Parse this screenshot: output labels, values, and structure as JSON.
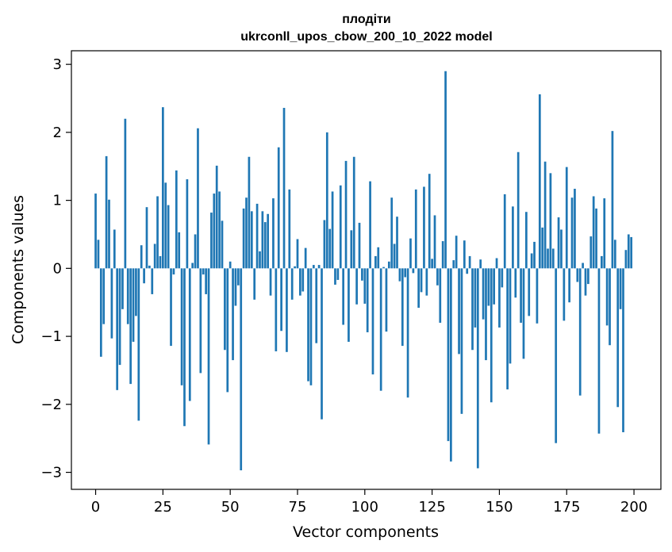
{
  "chart_data": {
    "type": "bar",
    "title": "плодіти",
    "subtitle": "ukrconll_upos_cbow_200_10_2022 model",
    "xlabel": "Vector components",
    "ylabel": "Components values",
    "xlim": [
      -9,
      210
    ],
    "ylim": [
      -3.25,
      3.2
    ],
    "xticks": [
      0,
      25,
      50,
      75,
      100,
      125,
      150,
      175,
      200
    ],
    "yticks": [
      -3,
      -2,
      -1,
      0,
      1,
      2,
      3
    ],
    "grid": false,
    "bar_color": "#1f77b4",
    "x": [
      0,
      1,
      2,
      3,
      4,
      5,
      6,
      7,
      8,
      9,
      10,
      11,
      12,
      13,
      14,
      15,
      16,
      17,
      18,
      19,
      20,
      21,
      22,
      23,
      24,
      25,
      26,
      27,
      28,
      29,
      30,
      31,
      32,
      33,
      34,
      35,
      36,
      37,
      38,
      39,
      40,
      41,
      42,
      43,
      44,
      45,
      46,
      47,
      48,
      49,
      50,
      51,
      52,
      53,
      54,
      55,
      56,
      57,
      58,
      59,
      60,
      61,
      62,
      63,
      64,
      65,
      66,
      67,
      68,
      69,
      70,
      71,
      72,
      73,
      74,
      75,
      76,
      77,
      78,
      79,
      80,
      81,
      82,
      83,
      84,
      85,
      86,
      87,
      88,
      89,
      90,
      91,
      92,
      93,
      94,
      95,
      96,
      97,
      98,
      99,
      100,
      101,
      102,
      103,
      104,
      105,
      106,
      107,
      108,
      109,
      110,
      111,
      112,
      113,
      114,
      115,
      116,
      117,
      118,
      119,
      120,
      121,
      122,
      123,
      124,
      125,
      126,
      127,
      128,
      129,
      130,
      131,
      132,
      133,
      134,
      135,
      136,
      137,
      138,
      139,
      140,
      141,
      142,
      143,
      144,
      145,
      146,
      147,
      148,
      149,
      150,
      151,
      152,
      153,
      154,
      155,
      156,
      157,
      158,
      159,
      160,
      161,
      162,
      163,
      164,
      165,
      166,
      167,
      168,
      169,
      170,
      171,
      172,
      173,
      174,
      175,
      176,
      177,
      178,
      179,
      180,
      181,
      182,
      183,
      184,
      185,
      186,
      187,
      188,
      189,
      190,
      191,
      192,
      193,
      194,
      195,
      196,
      197,
      198,
      199
    ],
    "values": [
      1.1,
      0.42,
      -1.3,
      -0.82,
      1.65,
      1.01,
      -1.03,
      0.57,
      -1.79,
      -1.42,
      -0.6,
      2.2,
      -0.82,
      -1.7,
      -1.08,
      -0.7,
      -2.24,
      0.34,
      -0.22,
      0.9,
      0.04,
      -0.38,
      0.36,
      1.06,
      0.18,
      2.37,
      1.26,
      0.93,
      -1.14,
      -0.09,
      1.44,
      0.53,
      -1.72,
      -2.32,
      1.31,
      -1.95,
      0.08,
      0.5,
      2.06,
      -1.54,
      -0.09,
      -0.38,
      -2.59,
      0.82,
      1.1,
      1.51,
      1.13,
      0.7,
      -1.2,
      -1.82,
      0.1,
      -1.35,
      -0.55,
      -0.25,
      -2.97,
      0.88,
      1.04,
      1.64,
      0.84,
      -0.46,
      0.95,
      0.25,
      0.84,
      0.68,
      0.8,
      -0.4,
      1.03,
      -1.22,
      1.78,
      -0.92,
      2.36,
      -1.23,
      1.16,
      -0.46,
      0.03,
      0.43,
      -0.4,
      -0.34,
      0.3,
      -1.66,
      -1.72,
      0.05,
      -1.1,
      0.05,
      -2.22,
      0.71,
      2.0,
      0.58,
      1.13,
      -0.24,
      -0.17,
      1.22,
      -0.83,
      1.58,
      -1.08,
      0.56,
      1.64,
      -0.53,
      0.67,
      -0.18,
      -0.52,
      -0.94,
      1.28,
      -1.56,
      0.18,
      0.31,
      -1.8,
      0.02,
      -0.93,
      0.1,
      1.04,
      0.36,
      0.76,
      -0.19,
      -1.14,
      -0.13,
      -1.9,
      0.44,
      -0.07,
      1.16,
      -0.58,
      -0.35,
      1.2,
      -0.4,
      1.39,
      0.14,
      0.78,
      -0.25,
      -0.8,
      0.4,
      2.9,
      -2.54,
      -2.84,
      0.12,
      0.48,
      -1.26,
      -2.14,
      0.41,
      -0.08,
      0.18,
      -1.2,
      -0.87,
      -2.94,
      0.13,
      -0.75,
      -1.35,
      -0.55,
      -1.97,
      -0.53,
      0.15,
      -0.87,
      -0.28,
      1.09,
      -1.78,
      -1.4,
      0.91,
      -0.43,
      1.71,
      -0.8,
      -1.33,
      0.83,
      -0.7,
      0.22,
      0.39,
      -0.81,
      2.56,
      0.6,
      1.57,
      0.29,
      1.4,
      0.29,
      -2.57,
      0.75,
      0.57,
      -0.77,
      1.49,
      -0.5,
      1.04,
      1.17,
      -0.2,
      -1.87,
      0.08,
      -0.4,
      -0.23,
      0.47,
      1.06,
      0.88,
      -2.43,
      0.18,
      1.03,
      -0.84,
      -1.13,
      2.02,
      0.42,
      -2.04,
      -0.6,
      -2.41,
      0.27,
      0.5,
      0.46
    ]
  }
}
